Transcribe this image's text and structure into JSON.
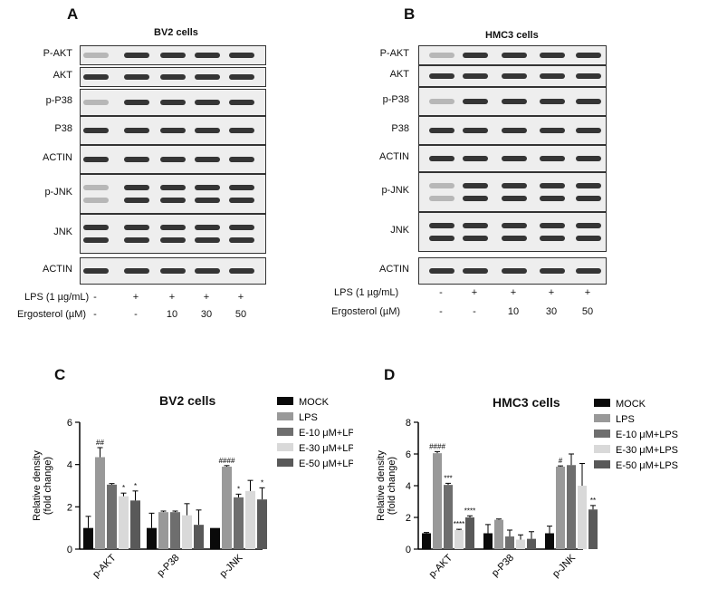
{
  "panels": {
    "A": "A",
    "B": "B",
    "C": "C",
    "D": "D"
  },
  "blots": [
    {
      "title": "BV2 cells",
      "rows": [
        "P-AKT",
        "AKT",
        "p-P38",
        "P38",
        "ACTIN",
        "p-JNK",
        "JNK",
        "ACTIN"
      ],
      "conditions": [
        {
          "label": "LPS (1 µg/mL)",
          "marks": [
            "-",
            "+",
            "+",
            "+",
            "+"
          ]
        },
        {
          "label": "Ergosterol (µM)",
          "marks": [
            "-",
            "-",
            "10",
            "30",
            "50"
          ]
        }
      ]
    },
    {
      "title": "HMC3 cells",
      "rows": [
        "P-AKT",
        "AKT",
        "p-P38",
        "P38",
        "ACTIN",
        "p-JNK",
        "JNK",
        "ACTIN"
      ],
      "conditions": [
        {
          "label": "LPS (1 µg/mL)",
          "marks": [
            "-",
            "+",
            "+",
            "+",
            "+"
          ]
        },
        {
          "label": "Ergosterol (µM)",
          "marks": [
            "-",
            "-",
            "10",
            "30",
            "50"
          ]
        }
      ]
    }
  ],
  "chart_data": [
    {
      "type": "bar",
      "title": "BV2 cells",
      "ylabel": "Relative density\n(fold change)",
      "ylim": [
        0,
        6
      ],
      "yticks": [
        "0",
        "2",
        "4",
        "6"
      ],
      "categories": [
        "p-AKT",
        "p-P38",
        "p-JNK"
      ],
      "series": [
        {
          "name": "MOCK",
          "color": "#0a0a0a",
          "values": [
            1.0,
            1.0,
            1.0
          ],
          "errors": [
            0.55,
            0.7,
            0.0
          ],
          "sig": [
            "",
            "",
            ""
          ]
        },
        {
          "name": "LPS",
          "color": "#999999",
          "values": [
            4.35,
            1.75,
            3.9
          ],
          "errors": [
            0.45,
            0.05,
            0.05
          ],
          "sig": [
            "##",
            "",
            "####"
          ]
        },
        {
          "name": "E-10 μM+LPS",
          "color": "#6e6e6e",
          "values": [
            3.05,
            1.75,
            2.45
          ],
          "errors": [
            0.05,
            0.05,
            0.15
          ],
          "sig": [
            "",
            "",
            "*"
          ]
        },
        {
          "name": "E-30 μM+LPS",
          "color": "#d9d9d9",
          "values": [
            2.5,
            1.6,
            2.75
          ],
          "errors": [
            0.15,
            0.55,
            0.5
          ],
          "sig": [
            "*",
            "",
            ""
          ]
        },
        {
          "name": "E-50 μM+LPS",
          "color": "#595959",
          "values": [
            2.3,
            1.15,
            2.35
          ],
          "errors": [
            0.45,
            0.7,
            0.55
          ],
          "sig": [
            "*",
            "",
            "*"
          ]
        }
      ]
    },
    {
      "type": "bar",
      "title": "HMC3 cells",
      "ylabel": "Relative density\n(fold change)",
      "ylim": [
        0,
        8
      ],
      "yticks": [
        "0",
        "2",
        "4",
        "6",
        "8"
      ],
      "categories": [
        "p-AKT",
        "p-P38",
        "p-JNK"
      ],
      "series": [
        {
          "name": "MOCK",
          "color": "#0a0a0a",
          "values": [
            1.0,
            1.0,
            1.0
          ],
          "errors": [
            0.05,
            0.55,
            0.45
          ],
          "sig": [
            "",
            "",
            ""
          ]
        },
        {
          "name": "LPS",
          "color": "#999999",
          "values": [
            6.05,
            1.85,
            5.2
          ],
          "errors": [
            0.1,
            0.05,
            0.05
          ],
          "sig": [
            "####",
            "",
            "#"
          ]
        },
        {
          "name": "E-10 μM+LPS",
          "color": "#6e6e6e",
          "values": [
            4.05,
            0.8,
            5.3
          ],
          "errors": [
            0.1,
            0.4,
            0.7
          ],
          "sig": [
            "***",
            "",
            ""
          ]
        },
        {
          "name": "E-30 μM+LPS",
          "color": "#d9d9d9",
          "values": [
            1.2,
            0.6,
            4.0
          ],
          "errors": [
            0.05,
            0.3,
            1.4
          ],
          "sig": [
            "****",
            "",
            ""
          ]
        },
        {
          "name": "E-50 μM+LPS",
          "color": "#595959",
          "values": [
            2.0,
            0.65,
            2.5
          ],
          "errors": [
            0.1,
            0.45,
            0.25
          ],
          "sig": [
            "****",
            "",
            "**"
          ]
        }
      ]
    }
  ]
}
